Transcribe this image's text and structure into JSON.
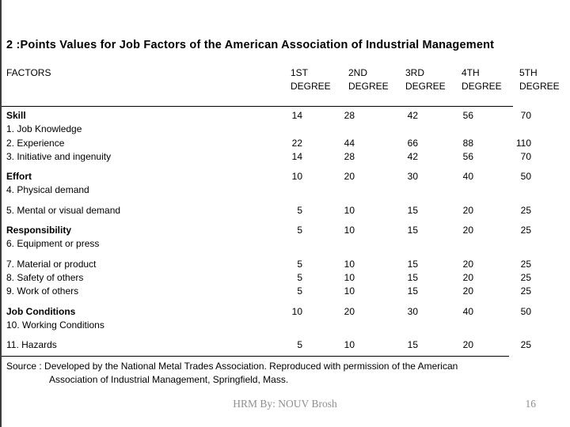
{
  "slide": {
    "title": "2 :Points Values for Job Factors of the American Association of Industrial Management",
    "footer_text": "HRM By: NOUV Brosh",
    "page_number": "16"
  },
  "table": {
    "factors_header": "FACTORS",
    "degree_headers": [
      "1ST DEGREE",
      "2ND DEGREE",
      "3RD DEGREE",
      "4TH DEGREE",
      "5TH DEGREE"
    ],
    "groups": [
      {
        "rows": [
          {
            "label": "Skill",
            "bold": true,
            "values": [
              "14",
              "28",
              "42",
              "56",
              "70"
            ]
          },
          {
            "label": "1. Job Knowledge",
            "bold": false,
            "values": []
          },
          {
            "label": "2. Experience",
            "bold": false,
            "values": [
              "22",
              "44",
              "66",
              "88",
              "110"
            ]
          },
          {
            "label": "3. Initiative and ingenuity",
            "bold": false,
            "values": [
              "14",
              "28",
              "42",
              "56",
              "70"
            ]
          }
        ]
      },
      {
        "rows": [
          {
            "label": "Effort",
            "bold": true,
            "values": [
              "10",
              "20",
              "30",
              "40",
              "50"
            ]
          },
          {
            "label": "4. Physical demand",
            "bold": false,
            "values": []
          }
        ]
      },
      {
        "rows": [
          {
            "label": "5. Mental or visual demand",
            "bold": false,
            "values": [
              "5",
              "10",
              "15",
              "20",
              "25"
            ]
          }
        ]
      },
      {
        "rows": [
          {
            "label": "Responsibility",
            "bold": true,
            "values": [
              "5",
              "10",
              "15",
              "20",
              "25"
            ]
          },
          {
            "label": "6. Equipment or press",
            "bold": false,
            "values": []
          }
        ]
      },
      {
        "rows": [
          {
            "label": "7. Material or product",
            "bold": false,
            "values": [
              "5",
              "10",
              "15",
              "20",
              "25"
            ]
          },
          {
            "label": "8. Safety of others",
            "bold": false,
            "values": [
              "5",
              "10",
              "15",
              "20",
              "25"
            ]
          },
          {
            "label": "9. Work of others",
            "bold": false,
            "values": [
              "5",
              "10",
              "15",
              "20",
              "25"
            ]
          }
        ]
      },
      {
        "rows": [
          {
            "label": "Job Conditions",
            "bold": true,
            "values": [
              "10",
              "20",
              "30",
              "40",
              "50"
            ]
          },
          {
            "label": "10. Working Conditions",
            "bold": false,
            "values": []
          }
        ]
      },
      {
        "rows": [
          {
            "label": "11. Hazards",
            "bold": false,
            "values": [
              "5",
              "10",
              "15",
              "20",
              "25"
            ]
          }
        ]
      }
    ],
    "source_line1": "Source : Developed by the National Metal Trades Association. Reproduced with permission of the American",
    "source_line2": "Association of Industrial Management, Springfield, Mass."
  }
}
